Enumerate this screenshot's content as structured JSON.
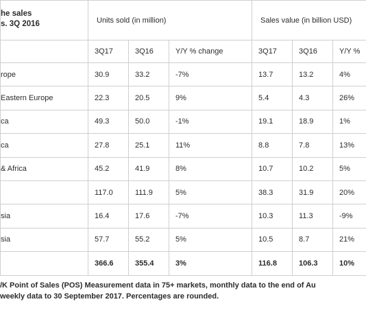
{
  "header": {
    "corner_line1": "he sales",
    "corner_line2": "s. 3Q 2016",
    "units_group": "Units sold (in million)",
    "value_group": "Sales value (in billion USD)"
  },
  "columns": [
    "3Q17",
    "3Q16",
    "Y/Y % change",
    "3Q17",
    "3Q16",
    "Y/Y %"
  ],
  "rows": [
    {
      "region": "rope",
      "cells": [
        "30.9",
        "33.2",
        "-7%",
        "13.7",
        "13.2",
        "4%"
      ]
    },
    {
      "region": "Eastern Europe",
      "cells": [
        "22.3",
        "20.5",
        "9%",
        "5.4",
        "4.3",
        "26%"
      ]
    },
    {
      "region": "ca",
      "cells": [
        "49.3",
        "50.0",
        "-1%",
        "19.1",
        "18.9",
        "1%"
      ]
    },
    {
      "region": "ca",
      "cells": [
        "27.8",
        "25.1",
        "11%",
        "8.8",
        "7.8",
        "13%"
      ]
    },
    {
      "region": "& Africa",
      "cells": [
        "45.2",
        "41.9",
        "8%",
        "10.7",
        "10.2",
        "5%"
      ]
    },
    {
      "region": "",
      "cells": [
        "117.0",
        "111.9",
        "5%",
        "38.3",
        "31.9",
        "20%"
      ]
    },
    {
      "region": "sia",
      "cells": [
        "16.4",
        "17.6",
        "-7%",
        "10.3",
        "11.3",
        "-9%"
      ]
    },
    {
      "region": "sia",
      "cells": [
        "57.7",
        "55.2",
        "5%",
        "10.5",
        "8.7",
        "21%"
      ]
    }
  ],
  "total": {
    "region": "",
    "cells": [
      "366.6",
      "355.4",
      "3%",
      "116.8",
      "106.3",
      "10%"
    ]
  },
  "footnote": {
    "line1": "/K Point of Sales (POS) Measurement data in 75+ markets, monthly data to the end of Au",
    "line2": "weekly data to 30 September 2017. Percentages are rounded."
  }
}
